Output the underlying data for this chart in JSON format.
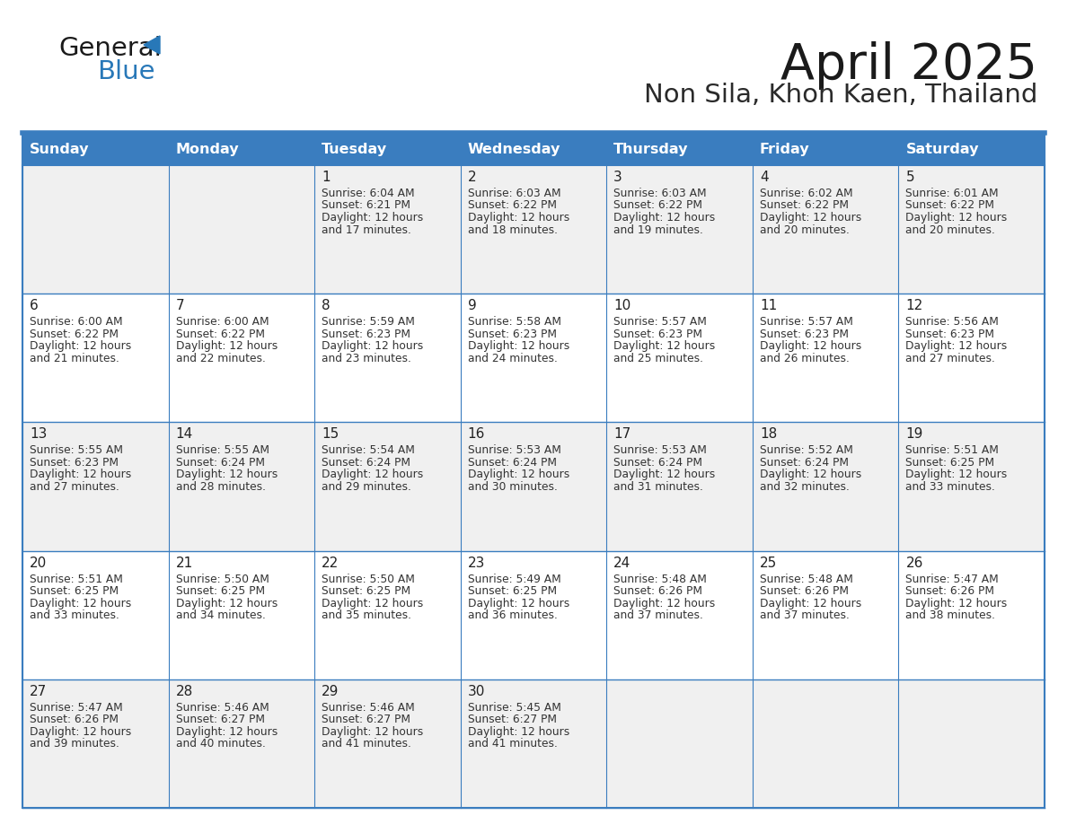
{
  "title": "April 2025",
  "subtitle": "Non Sila, Khon Kaen, Thailand",
  "days_of_week": [
    "Sunday",
    "Monday",
    "Tuesday",
    "Wednesday",
    "Thursday",
    "Friday",
    "Saturday"
  ],
  "header_bg": "#3a7dbf",
  "header_text_color": "#ffffff",
  "row_bg_even": "#f0f0f0",
  "row_bg_odd": "#ffffff",
  "border_color": "#3a7dbf",
  "text_color": "#333333",
  "calendar_data": [
    [
      {
        "day": "",
        "sunrise": "",
        "sunset": "",
        "daylight": ""
      },
      {
        "day": "",
        "sunrise": "",
        "sunset": "",
        "daylight": ""
      },
      {
        "day": "1",
        "sunrise": "6:04 AM",
        "sunset": "6:21 PM",
        "daylight": "12 hours and 17 minutes."
      },
      {
        "day": "2",
        "sunrise": "6:03 AM",
        "sunset": "6:22 PM",
        "daylight": "12 hours and 18 minutes."
      },
      {
        "day": "3",
        "sunrise": "6:03 AM",
        "sunset": "6:22 PM",
        "daylight": "12 hours and 19 minutes."
      },
      {
        "day": "4",
        "sunrise": "6:02 AM",
        "sunset": "6:22 PM",
        "daylight": "12 hours and 20 minutes."
      },
      {
        "day": "5",
        "sunrise": "6:01 AM",
        "sunset": "6:22 PM",
        "daylight": "12 hours and 20 minutes."
      }
    ],
    [
      {
        "day": "6",
        "sunrise": "6:00 AM",
        "sunset": "6:22 PM",
        "daylight": "12 hours and 21 minutes."
      },
      {
        "day": "7",
        "sunrise": "6:00 AM",
        "sunset": "6:22 PM",
        "daylight": "12 hours and 22 minutes."
      },
      {
        "day": "8",
        "sunrise": "5:59 AM",
        "sunset": "6:23 PM",
        "daylight": "12 hours and 23 minutes."
      },
      {
        "day": "9",
        "sunrise": "5:58 AM",
        "sunset": "6:23 PM",
        "daylight": "12 hours and 24 minutes."
      },
      {
        "day": "10",
        "sunrise": "5:57 AM",
        "sunset": "6:23 PM",
        "daylight": "12 hours and 25 minutes."
      },
      {
        "day": "11",
        "sunrise": "5:57 AM",
        "sunset": "6:23 PM",
        "daylight": "12 hours and 26 minutes."
      },
      {
        "day": "12",
        "sunrise": "5:56 AM",
        "sunset": "6:23 PM",
        "daylight": "12 hours and 27 minutes."
      }
    ],
    [
      {
        "day": "13",
        "sunrise": "5:55 AM",
        "sunset": "6:23 PM",
        "daylight": "12 hours and 27 minutes."
      },
      {
        "day": "14",
        "sunrise": "5:55 AM",
        "sunset": "6:24 PM",
        "daylight": "12 hours and 28 minutes."
      },
      {
        "day": "15",
        "sunrise": "5:54 AM",
        "sunset": "6:24 PM",
        "daylight": "12 hours and 29 minutes."
      },
      {
        "day": "16",
        "sunrise": "5:53 AM",
        "sunset": "6:24 PM",
        "daylight": "12 hours and 30 minutes."
      },
      {
        "day": "17",
        "sunrise": "5:53 AM",
        "sunset": "6:24 PM",
        "daylight": "12 hours and 31 minutes."
      },
      {
        "day": "18",
        "sunrise": "5:52 AM",
        "sunset": "6:24 PM",
        "daylight": "12 hours and 32 minutes."
      },
      {
        "day": "19",
        "sunrise": "5:51 AM",
        "sunset": "6:25 PM",
        "daylight": "12 hours and 33 minutes."
      }
    ],
    [
      {
        "day": "20",
        "sunrise": "5:51 AM",
        "sunset": "6:25 PM",
        "daylight": "12 hours and 33 minutes."
      },
      {
        "day": "21",
        "sunrise": "5:50 AM",
        "sunset": "6:25 PM",
        "daylight": "12 hours and 34 minutes."
      },
      {
        "day": "22",
        "sunrise": "5:50 AM",
        "sunset": "6:25 PM",
        "daylight": "12 hours and 35 minutes."
      },
      {
        "day": "23",
        "sunrise": "5:49 AM",
        "sunset": "6:25 PM",
        "daylight": "12 hours and 36 minutes."
      },
      {
        "day": "24",
        "sunrise": "5:48 AM",
        "sunset": "6:26 PM",
        "daylight": "12 hours and 37 minutes."
      },
      {
        "day": "25",
        "sunrise": "5:48 AM",
        "sunset": "6:26 PM",
        "daylight": "12 hours and 37 minutes."
      },
      {
        "day": "26",
        "sunrise": "5:47 AM",
        "sunset": "6:26 PM",
        "daylight": "12 hours and 38 minutes."
      }
    ],
    [
      {
        "day": "27",
        "sunrise": "5:47 AM",
        "sunset": "6:26 PM",
        "daylight": "12 hours and 39 minutes."
      },
      {
        "day": "28",
        "sunrise": "5:46 AM",
        "sunset": "6:27 PM",
        "daylight": "12 hours and 40 minutes."
      },
      {
        "day": "29",
        "sunrise": "5:46 AM",
        "sunset": "6:27 PM",
        "daylight": "12 hours and 41 minutes."
      },
      {
        "day": "30",
        "sunrise": "5:45 AM",
        "sunset": "6:27 PM",
        "daylight": "12 hours and 41 minutes."
      },
      {
        "day": "",
        "sunrise": "",
        "sunset": "",
        "daylight": ""
      },
      {
        "day": "",
        "sunrise": "",
        "sunset": "",
        "daylight": ""
      },
      {
        "day": "",
        "sunrise": "",
        "sunset": "",
        "daylight": ""
      }
    ]
  ]
}
